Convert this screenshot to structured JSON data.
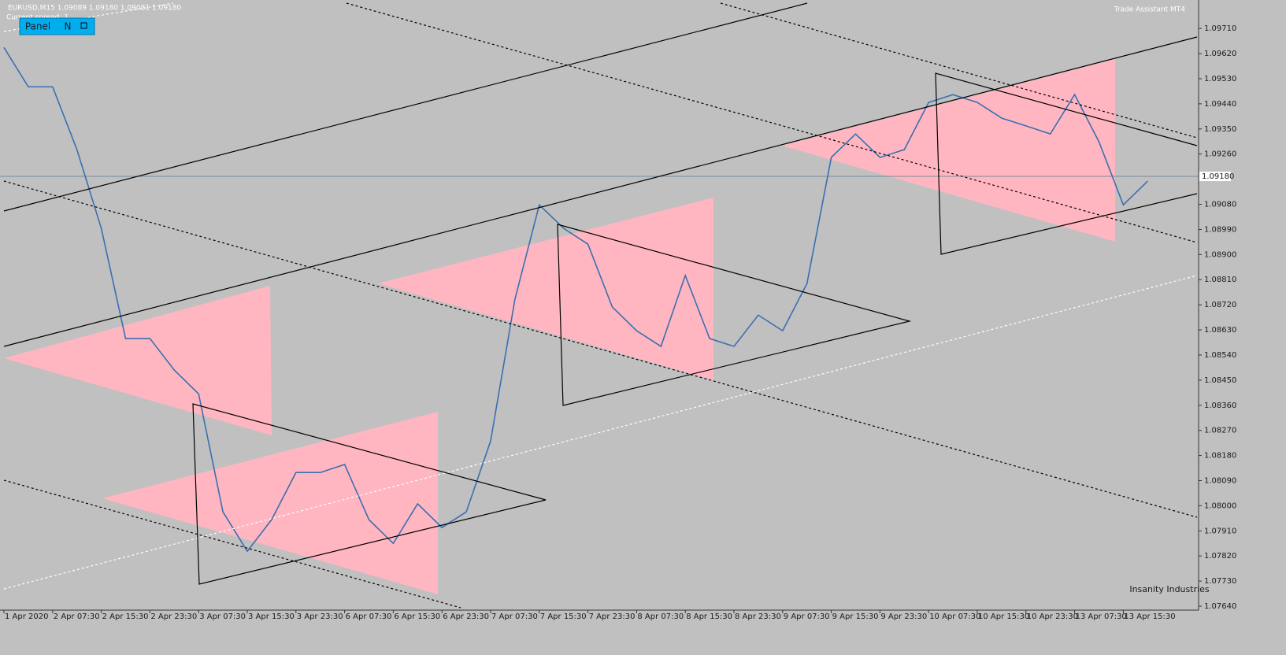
{
  "header": {
    "symbol_line": "EURUSD,M15  1.09089 1.09180 1.09081 1.09180",
    "spread": "Current spread: 1",
    "panel_label": "Panel",
    "panel_mode": "N",
    "assistant": "Trade Assistant MT4",
    "watermark": "Insanity Industries"
  },
  "chart_data": {
    "type": "line",
    "categories": [
      "1 Apr 2020",
      null,
      "2 Apr 07:30",
      null,
      "2 Apr 15:30",
      null,
      "2 Apr 23:30",
      null,
      "3 Apr 07:30",
      null,
      "3 Apr 15:30",
      null,
      "3 Apr 23:30",
      null,
      "6 Apr 07:30",
      null,
      "6 Apr 15:30",
      null,
      "6 Apr 23:30",
      null,
      "7 Apr 07:30",
      null,
      "7 Apr 15:30",
      null,
      "7 Apr 23:30",
      null,
      "8 Apr 07:30",
      null,
      "8 Apr 15:30",
      null,
      "8 Apr 23:30",
      null,
      "9 Apr 07:30",
      null,
      "9 Apr 15:30",
      null,
      "9 Apr 23:30",
      null,
      "10 Apr 07:30",
      null,
      "10 Apr 15:30",
      null,
      "10 Apr 23:30",
      null,
      "13 Apr 07:30",
      null,
      "13 Apr 15:30",
      null
    ],
    "series": [
      {
        "name": "EURUSD",
        "color": "#3a6fb0",
        "values": [
          1.09642,
          1.09501,
          1.09501,
          1.09276,
          1.08994,
          1.08599,
          1.08599,
          1.08486,
          1.08401,
          1.07978,
          1.07837,
          1.0795,
          1.08119,
          1.08119,
          1.08148,
          1.0795,
          1.07865,
          1.08007,
          1.07922,
          1.07978,
          1.08232,
          1.0874,
          1.09078,
          1.08994,
          1.08937,
          1.08712,
          1.08627,
          1.08571,
          1.08825,
          1.08599,
          1.08571,
          1.08683,
          1.08627,
          1.08796,
          1.09248,
          1.09332,
          1.09248,
          1.09276,
          1.09445,
          1.09473,
          1.09445,
          1.09389,
          1.09361,
          1.09332,
          1.09473,
          1.09304,
          1.09078,
          1.09163
        ]
      }
    ],
    "ylim": [
      1.07626,
      1.09812
    ],
    "yticks": [
      {
        "value": 1.0971,
        "label": "1.09710"
      },
      {
        "value": 1.0962,
        "label": "1.09620"
      },
      {
        "value": 1.0953,
        "label": "1.09530"
      },
      {
        "value": 1.0944,
        "label": "1.09440"
      },
      {
        "value": 1.0935,
        "label": "1.09350"
      },
      {
        "value": 1.0926,
        "label": "1.09260"
      },
      {
        "value": 1.0908,
        "label": "1.09080"
      },
      {
        "value": 1.0899,
        "label": "1.08990"
      },
      {
        "value": 1.089,
        "label": "1.08900"
      },
      {
        "value": 1.0881,
        "label": "1.08810"
      },
      {
        "value": 1.0872,
        "label": "1.08720"
      },
      {
        "value": 1.0863,
        "label": "1.08630"
      },
      {
        "value": 1.0854,
        "label": "1.08540"
      },
      {
        "value": 1.0845,
        "label": "1.08450"
      },
      {
        "value": 1.0836,
        "label": "1.08360"
      },
      {
        "value": 1.0827,
        "label": "1.08270"
      },
      {
        "value": 1.0818,
        "label": "1.08180"
      },
      {
        "value": 1.0809,
        "label": "1.08090"
      },
      {
        "value": 1.08,
        "label": "1.08000"
      },
      {
        "value": 1.0791,
        "label": "1.07910"
      },
      {
        "value": 1.0782,
        "label": "1.07820"
      },
      {
        "value": 1.0773,
        "label": "1.07730"
      },
      {
        "value": 1.0764,
        "label": "1.07640"
      }
    ],
    "bid_line": {
      "value": 1.0918,
      "label": "1.09180"
    }
  }
}
